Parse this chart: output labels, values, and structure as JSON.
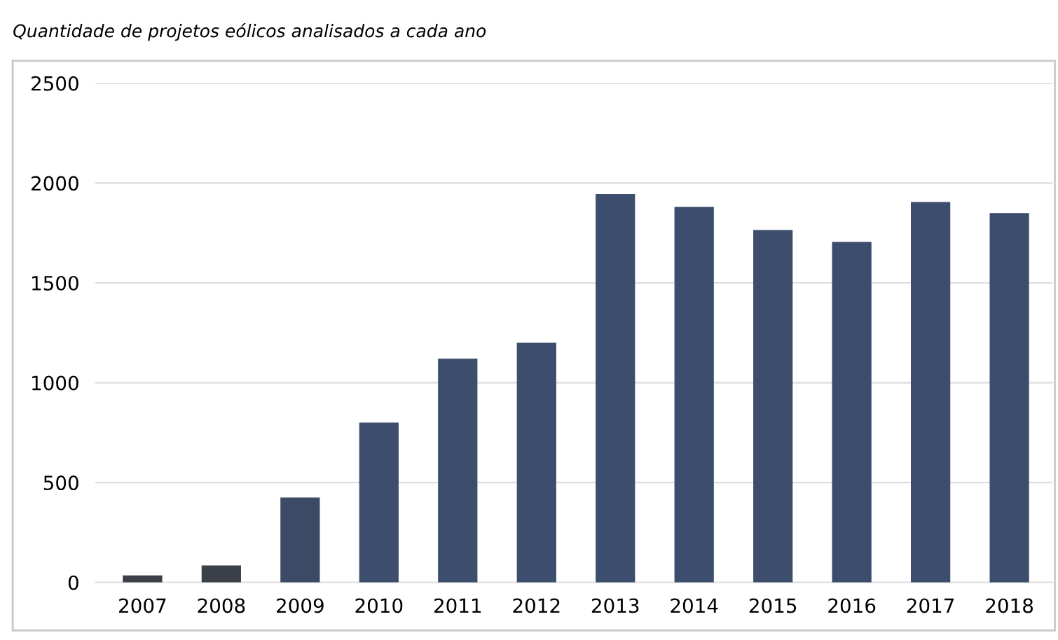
{
  "chart_data": {
    "type": "bar",
    "title": "Quantidade de projetos eólicos analisados a cada ano",
    "categories": [
      "2007",
      "2008",
      "2009",
      "2010",
      "2011",
      "2012",
      "2013",
      "2014",
      "2015",
      "2016",
      "2017",
      "2018"
    ],
    "values": [
      35,
      85,
      425,
      800,
      1120,
      1200,
      1945,
      1880,
      1765,
      1705,
      1905,
      1850
    ],
    "colors": [
      "#3b3f48",
      "#3b3f48",
      "#3c4a66",
      "#3c4d6e",
      "#3c4d6e",
      "#3c4d6e",
      "#3c4d6e",
      "#3c4d6e",
      "#3c4d6e",
      "#3c4d6e",
      "#3c4d6e",
      "#3c4d6e"
    ],
    "ylim": [
      0,
      2500
    ],
    "yticks": [
      0,
      500,
      1000,
      1500,
      2000,
      2500
    ],
    "grid": "y"
  }
}
